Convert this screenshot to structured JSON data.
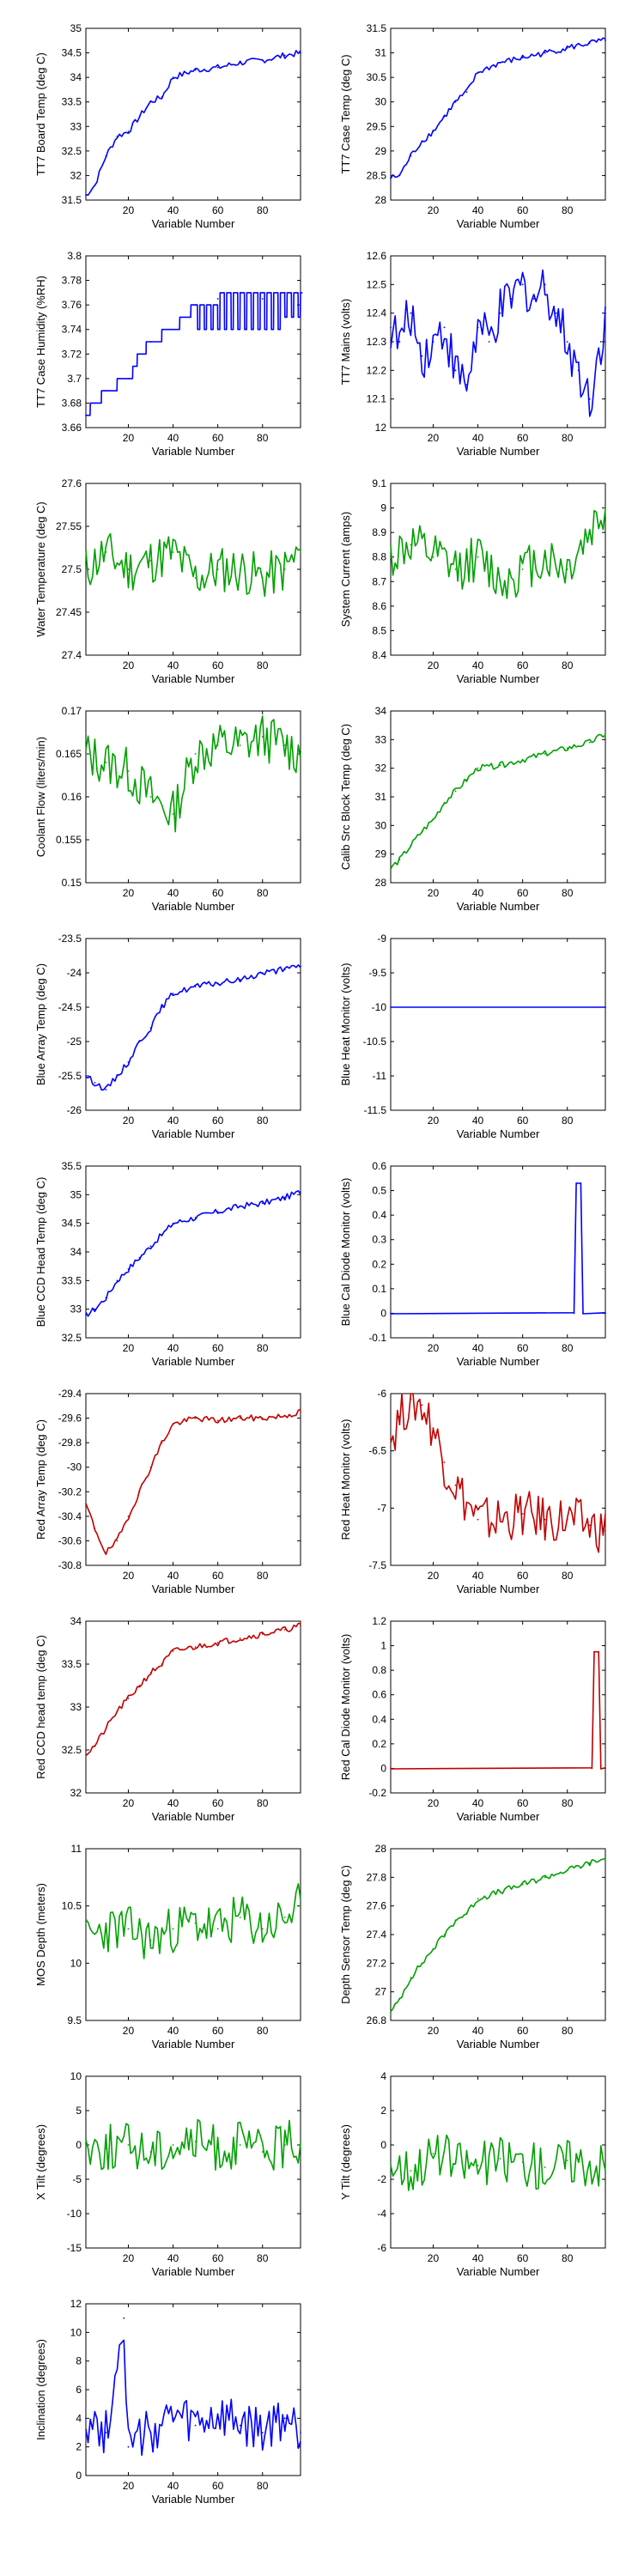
{
  "colors": {
    "blue": "#0000ff",
    "green": "#00a000",
    "red": "#c00000",
    "axis": "#000000"
  },
  "chart_data": [
    {
      "type": "line",
      "color": "blue",
      "ylabel": "TT7 Board Temp (deg C)",
      "xlabel": "Variable Number",
      "xlim": [
        1,
        97
      ],
      "xticks": [
        20,
        40,
        60,
        80
      ],
      "ylim": [
        31.5,
        35
      ],
      "yticks": [
        31.5,
        32,
        32.5,
        33,
        33.5,
        34,
        34.5,
        35
      ],
      "shape": "ramp",
      "x": [
        1,
        5,
        10,
        15,
        20,
        25,
        30,
        35,
        40,
        50,
        60,
        70,
        80,
        90,
        97
      ],
      "y": [
        31.6,
        31.8,
        32.4,
        32.8,
        32.9,
        33.2,
        33.5,
        33.6,
        34.0,
        34.15,
        34.2,
        34.3,
        34.35,
        34.45,
        34.5
      ]
    },
    {
      "type": "line",
      "color": "blue",
      "ylabel": "TT7 Case Temp (deg C)",
      "xlabel": "Variable Number",
      "xlim": [
        1,
        97
      ],
      "xticks": [
        20,
        40,
        60,
        80
      ],
      "ylim": [
        28,
        31.5
      ],
      "yticks": [
        28,
        28.5,
        29,
        29.5,
        30,
        30.5,
        31,
        31.5
      ],
      "shape": "ramp",
      "x": [
        1,
        5,
        10,
        15,
        20,
        25,
        30,
        35,
        40,
        50,
        60,
        70,
        80,
        90,
        97
      ],
      "y": [
        28.45,
        28.5,
        28.9,
        29.2,
        29.4,
        29.7,
        30.0,
        30.2,
        30.6,
        30.8,
        30.9,
        31.0,
        31.1,
        31.2,
        31.25
      ]
    },
    {
      "type": "line",
      "color": "blue",
      "ylabel": "TT7 Case Humidity (%RH)",
      "xlabel": "Variable Number",
      "xlim": [
        1,
        97
      ],
      "xticks": [
        20,
        40,
        60,
        80
      ],
      "ylim": [
        3.66,
        3.8
      ],
      "yticks": [
        3.66,
        3.68,
        3.7,
        3.72,
        3.74,
        3.76,
        3.78,
        3.8
      ],
      "shape": "steps",
      "x": [
        1,
        5,
        10,
        20,
        25,
        30,
        40,
        50,
        60,
        70,
        80,
        90,
        97
      ],
      "y": [
        3.67,
        3.68,
        3.69,
        3.7,
        3.72,
        3.73,
        3.74,
        3.76,
        3.765,
        3.77,
        3.765,
        3.77,
        3.77
      ]
    },
    {
      "type": "line",
      "color": "blue",
      "ylabel": "TT7 Mains  (volts)",
      "xlabel": "Variable Number",
      "xlim": [
        1,
        97
      ],
      "xticks": [
        20,
        40,
        60,
        80
      ],
      "ylim": [
        12,
        12.6
      ],
      "yticks": [
        12,
        12.1,
        12.2,
        12.3,
        12.4,
        12.5,
        12.6
      ],
      "shape": "noise",
      "x": [
        1,
        5,
        10,
        15,
        20,
        25,
        30,
        35,
        40,
        45,
        50,
        55,
        60,
        65,
        70,
        75,
        80,
        85,
        90,
        95,
        97
      ],
      "y": [
        12.35,
        12.3,
        12.4,
        12.25,
        12.3,
        12.35,
        12.2,
        12.15,
        12.35,
        12.3,
        12.4,
        12.45,
        12.5,
        12.45,
        12.5,
        12.4,
        12.3,
        12.2,
        12.1,
        12.3,
        12.4
      ]
    },
    {
      "type": "line",
      "color": "green",
      "ylabel": "Water Temperature (deg C)",
      "xlabel": "Variable Number",
      "xlim": [
        1,
        97
      ],
      "xticks": [
        20,
        40,
        60,
        80
      ],
      "ylim": [
        27.4,
        27.6
      ],
      "yticks": [
        27.4,
        27.45,
        27.5,
        27.55,
        27.6
      ],
      "shape": "noise",
      "x": [
        1,
        10,
        20,
        30,
        40,
        50,
        60,
        70,
        80,
        90,
        97
      ],
      "y": [
        27.5,
        27.52,
        27.5,
        27.51,
        27.52,
        27.49,
        27.5,
        27.5,
        27.49,
        27.5,
        27.52
      ]
    },
    {
      "type": "line",
      "color": "green",
      "ylabel": "System Current (amps)",
      "xlabel": "Variable Number",
      "xlim": [
        1,
        97
      ],
      "xticks": [
        20,
        40,
        60,
        80
      ],
      "ylim": [
        8.4,
        9.1
      ],
      "yticks": [
        8.4,
        8.5,
        8.6,
        8.7,
        8.8,
        8.9,
        9,
        9.1
      ],
      "shape": "noise",
      "x": [
        1,
        10,
        20,
        30,
        40,
        50,
        60,
        70,
        80,
        90,
        97
      ],
      "y": [
        8.8,
        8.85,
        8.8,
        8.75,
        8.8,
        8.7,
        8.75,
        8.8,
        8.75,
        8.9,
        9.0
      ]
    },
    {
      "type": "line",
      "color": "green",
      "ylabel": "Coolant Flow (liters/min)",
      "xlabel": "Variable Number",
      "xlim": [
        1,
        97
      ],
      "xticks": [
        20,
        40,
        60,
        80
      ],
      "ylim": [
        0.15,
        0.17
      ],
      "yticks": [
        0.15,
        0.155,
        0.16,
        0.165,
        0.17
      ],
      "shape": "noise",
      "x": [
        1,
        10,
        20,
        30,
        40,
        50,
        60,
        70,
        80,
        90,
        97
      ],
      "y": [
        0.165,
        0.164,
        0.163,
        0.16,
        0.158,
        0.165,
        0.166,
        0.166,
        0.167,
        0.166,
        0.165
      ]
    },
    {
      "type": "line",
      "color": "green",
      "ylabel": "Calib Src Block Temp (deg C)",
      "xlabel": "Variable Number",
      "xlim": [
        1,
        97
      ],
      "xticks": [
        20,
        40,
        60,
        80
      ],
      "ylim": [
        28,
        34
      ],
      "yticks": [
        28,
        29,
        30,
        31,
        32,
        33,
        34
      ],
      "shape": "ramp",
      "x": [
        1,
        5,
        10,
        15,
        20,
        25,
        30,
        35,
        40,
        50,
        60,
        70,
        80,
        90,
        97
      ],
      "y": [
        28.5,
        28.8,
        29.3,
        29.8,
        30.2,
        30.8,
        31.2,
        31.6,
        32.0,
        32.1,
        32.3,
        32.5,
        32.7,
        32.9,
        33.2
      ]
    },
    {
      "type": "line",
      "color": "blue",
      "ylabel": "Blue Array Temp (deg C)",
      "xlabel": "Variable Number",
      "xlim": [
        1,
        97
      ],
      "xticks": [
        20,
        40,
        60,
        80
      ],
      "ylim": [
        -26,
        -23.5
      ],
      "yticks": [
        -26,
        -25.5,
        -25,
        -24.5,
        -24,
        -23.5
      ],
      "shape": "ramp",
      "x": [
        1,
        5,
        10,
        15,
        20,
        25,
        30,
        35,
        40,
        50,
        60,
        70,
        80,
        90,
        97
      ],
      "y": [
        -25.5,
        -25.6,
        -25.7,
        -25.5,
        -25.3,
        -25.0,
        -24.8,
        -24.5,
        -24.3,
        -24.2,
        -24.15,
        -24.1,
        -24.0,
        -23.95,
        -23.9
      ]
    },
    {
      "type": "line",
      "color": "blue",
      "ylabel": "Blue Heat Monitor (volts)",
      "xlabel": "Variable Number",
      "xlim": [
        1,
        97
      ],
      "xticks": [
        20,
        40,
        60,
        80
      ],
      "ylim": [
        -11.5,
        -9
      ],
      "yticks": [
        -11.5,
        -11,
        -10.5,
        -10,
        -9.5,
        -9
      ],
      "shape": "flat",
      "x": [
        1,
        97
      ],
      "y": [
        -10,
        -10
      ]
    },
    {
      "type": "line",
      "color": "blue",
      "ylabel": "Blue CCD Head Temp (deg C)",
      "xlabel": "Variable Number",
      "xlim": [
        1,
        97
      ],
      "xticks": [
        20,
        40,
        60,
        80
      ],
      "ylim": [
        32.5,
        35.5
      ],
      "yticks": [
        32.5,
        33,
        33.5,
        34,
        34.5,
        35,
        35.5
      ],
      "shape": "ramp",
      "x": [
        1,
        5,
        10,
        15,
        20,
        25,
        30,
        35,
        40,
        50,
        60,
        70,
        80,
        90,
        97
      ],
      "y": [
        32.9,
        33.0,
        33.2,
        33.5,
        33.7,
        33.9,
        34.1,
        34.3,
        34.5,
        34.6,
        34.7,
        34.8,
        34.85,
        34.95,
        35.05
      ]
    },
    {
      "type": "line",
      "color": "blue",
      "ylabel": "Blue Cal Diode Monitor (volts)",
      "xlabel": "Variable Number",
      "xlim": [
        1,
        97
      ],
      "xticks": [
        20,
        40,
        60,
        80
      ],
      "ylim": [
        -0.1,
        0.6
      ],
      "yticks": [
        -0.1,
        0,
        0.1,
        0.2,
        0.3,
        0.4,
        0.5,
        0.6
      ],
      "shape": "spike",
      "x": [
        1,
        83,
        84,
        86,
        87,
        97
      ],
      "y": [
        0,
        0,
        0.53,
        0.53,
        0,
        0
      ]
    },
    {
      "type": "line",
      "color": "red",
      "ylabel": "Red Array Temp (deg C)",
      "xlabel": "Variable Number",
      "xlim": [
        1,
        97
      ],
      "xticks": [
        20,
        40,
        60,
        80
      ],
      "ylim": [
        -30.8,
        -29.4
      ],
      "yticks": [
        -30.8,
        -30.6,
        -30.4,
        -30.2,
        -30,
        -29.8,
        -29.6,
        -29.4
      ],
      "shape": "ramp",
      "x": [
        1,
        5,
        10,
        15,
        20,
        25,
        30,
        35,
        40,
        50,
        60,
        70,
        80,
        90,
        97
      ],
      "y": [
        -30.3,
        -30.5,
        -30.7,
        -30.6,
        -30.4,
        -30.2,
        -30.0,
        -29.8,
        -29.65,
        -29.6,
        -29.62,
        -29.6,
        -29.6,
        -29.58,
        -29.55
      ]
    },
    {
      "type": "line",
      "color": "red",
      "ylabel": "Red Heat Monitor (volts)",
      "xlabel": "Variable Number",
      "xlim": [
        1,
        97
      ],
      "xticks": [
        20,
        40,
        60,
        80
      ],
      "ylim": [
        -7.5,
        -6
      ],
      "yticks": [
        -7.5,
        -7,
        -6.5,
        -6
      ],
      "shape": "noise",
      "x": [
        1,
        5,
        10,
        15,
        20,
        25,
        30,
        35,
        40,
        50,
        60,
        70,
        80,
        90,
        97
      ],
      "y": [
        -6.4,
        -6.2,
        -6.05,
        -6.1,
        -6.3,
        -6.6,
        -6.8,
        -6.95,
        -7.1,
        -7.1,
        -7.05,
        -7.1,
        -7.1,
        -7.15,
        -7.2
      ]
    },
    {
      "type": "line",
      "color": "red",
      "ylabel": "Red CCD head temp (deg C)",
      "xlabel": "Variable Number",
      "xlim": [
        1,
        97
      ],
      "xticks": [
        20,
        40,
        60,
        80
      ],
      "ylim": [
        32,
        34
      ],
      "yticks": [
        32,
        32.5,
        33,
        33.5,
        34
      ],
      "shape": "ramp",
      "x": [
        1,
        5,
        10,
        15,
        20,
        25,
        30,
        35,
        40,
        50,
        60,
        70,
        80,
        90,
        97
      ],
      "y": [
        32.45,
        32.55,
        32.75,
        32.95,
        33.1,
        33.25,
        33.4,
        33.5,
        33.65,
        33.7,
        33.75,
        33.8,
        33.85,
        33.9,
        33.95
      ]
    },
    {
      "type": "line",
      "color": "red",
      "ylabel": "Red Cal Diode Monitor (volts)",
      "xlabel": "Variable Number",
      "xlim": [
        1,
        97
      ],
      "xticks": [
        20,
        40,
        60,
        80
      ],
      "ylim": [
        -0.2,
        1.2
      ],
      "yticks": [
        -0.2,
        0,
        0.2,
        0.4,
        0.6,
        0.8,
        1,
        1.2
      ],
      "shape": "spike",
      "x": [
        1,
        91,
        92,
        94,
        95,
        97
      ],
      "y": [
        0,
        0,
        0.95,
        0.95,
        0,
        0
      ]
    },
    {
      "type": "line",
      "color": "green",
      "ylabel": "MOS Depth  (meters)",
      "xlabel": "Variable Number",
      "xlim": [
        1,
        97
      ],
      "xticks": [
        20,
        40,
        60,
        80
      ],
      "ylim": [
        9.5,
        11
      ],
      "yticks": [
        9.5,
        10,
        10.5,
        11
      ],
      "shape": "noise",
      "x": [
        1,
        10,
        20,
        30,
        40,
        50,
        60,
        70,
        80,
        90,
        97
      ],
      "y": [
        10.2,
        10.3,
        10.3,
        10.2,
        10.3,
        10.35,
        10.3,
        10.4,
        10.3,
        10.4,
        10.5
      ]
    },
    {
      "type": "line",
      "color": "green",
      "ylabel": "Depth Sensor Temp (deg C)",
      "xlabel": "Variable Number",
      "xlim": [
        1,
        97
      ],
      "xticks": [
        20,
        40,
        60,
        80
      ],
      "ylim": [
        26.8,
        28
      ],
      "yticks": [
        26.8,
        27,
        27.2,
        27.4,
        27.6,
        27.8,
        28
      ],
      "shape": "ramp",
      "x": [
        1,
        5,
        10,
        15,
        20,
        25,
        30,
        35,
        40,
        50,
        60,
        70,
        80,
        90,
        97
      ],
      "y": [
        26.85,
        26.95,
        27.1,
        27.2,
        27.3,
        27.4,
        27.5,
        27.55,
        27.65,
        27.7,
        27.75,
        27.8,
        27.85,
        27.9,
        27.93
      ]
    },
    {
      "type": "line",
      "color": "green",
      "ylabel": "X Tilt  (degrees)",
      "xlabel": "Variable Number",
      "xlim": [
        1,
        97
      ],
      "xticks": [
        20,
        40,
        60,
        80
      ],
      "ylim": [
        -15,
        10
      ],
      "yticks": [
        -15,
        -10,
        -5,
        0,
        5,
        10
      ],
      "shape": "noise",
      "x": [
        1,
        10,
        20,
        30,
        40,
        50,
        60,
        70,
        80,
        90,
        97
      ],
      "y": [
        0,
        -0.5,
        0,
        -1,
        0,
        0.5,
        -0.5,
        0,
        -1,
        0,
        0.5
      ]
    },
    {
      "type": "line",
      "color": "green",
      "ylabel": "Y Tilt  (degrees)",
      "xlabel": "Variable Number",
      "xlim": [
        1,
        97
      ],
      "xticks": [
        20,
        40,
        60,
        80
      ],
      "ylim": [
        -6,
        4
      ],
      "yticks": [
        -6,
        -4,
        -2,
        0,
        2,
        4
      ],
      "shape": "noise",
      "x": [
        1,
        10,
        20,
        30,
        40,
        50,
        60,
        70,
        80,
        90,
        97
      ],
      "y": [
        -1,
        -1.5,
        -0.5,
        -1,
        -1.2,
        -0.8,
        -1,
        -1.3,
        -0.9,
        -1,
        -1.2
      ]
    },
    {
      "type": "line",
      "color": "blue",
      "ylabel": "Inclination  (degrees)",
      "xlabel": "Variable Number",
      "xlim": [
        1,
        97
      ],
      "xticks": [
        20,
        40,
        60,
        80
      ],
      "ylim": [
        0,
        12
      ],
      "yticks": [
        0,
        2,
        4,
        6,
        8,
        10,
        12
      ],
      "shape": "noise",
      "x": [
        1,
        10,
        18,
        20,
        30,
        40,
        50,
        60,
        70,
        80,
        90,
        97
      ],
      "y": [
        4,
        3,
        11,
        2,
        3,
        4,
        3.5,
        4,
        3.5,
        3,
        4,
        3
      ]
    }
  ]
}
